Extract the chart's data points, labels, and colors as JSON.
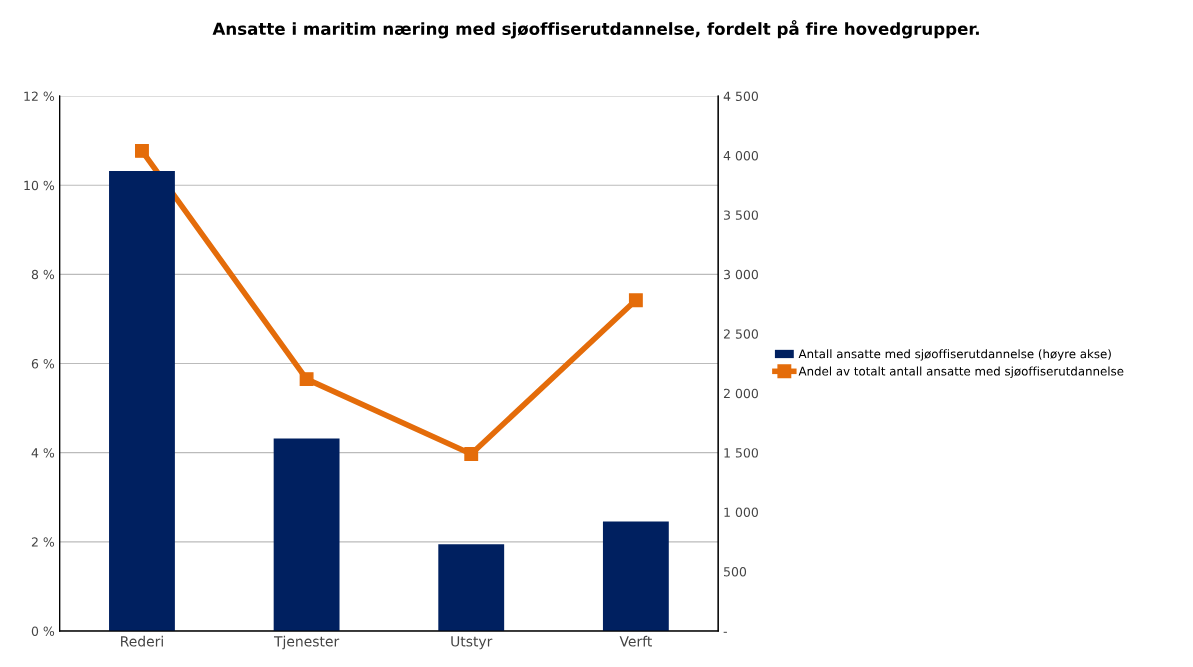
{
  "chart_data": {
    "type": "bar",
    "title": "Ansatte i maritim næring med sjøoffiserutdannelse, fordelt på fire hovedgrupper.",
    "categories": [
      "Rederi",
      "Tjenester",
      "Utstyr",
      "Verft"
    ],
    "series": [
      {
        "name": "Antall ansatte med sjøoffiserutdannelse (høyre akse)",
        "axis": "y2",
        "color": "#002060",
        "values": [
          3870,
          1620,
          730,
          920
        ]
      },
      {
        "name": "Andel av totalt antall ansatte med sjøoffiserutdannelse",
        "type": "line",
        "axis": "y",
        "color": "#e46c0a",
        "marker": "square",
        "values": [
          10.77,
          5.65,
          3.97,
          7.42
        ]
      }
    ],
    "ylim": [
      0,
      12
    ],
    "yticks": [
      {
        "value": 0,
        "label": "0 %"
      },
      {
        "value": 2,
        "label": "2 %"
      },
      {
        "value": 4,
        "label": "4 %"
      },
      {
        "value": 6,
        "label": "6 %"
      },
      {
        "value": 8,
        "label": "8 %"
      },
      {
        "value": 10,
        "label": "10 %"
      },
      {
        "value": 12,
        "label": "12 %"
      }
    ],
    "y2lim": [
      0,
      4500
    ],
    "y2ticks": [
      {
        "value": 0,
        "label": "-"
      },
      500,
      {
        "value": 1000,
        "label": "1 000"
      },
      {
        "value": 1500,
        "label": "1 500"
      },
      {
        "value": 2000,
        "label": "2 000"
      },
      {
        "value": 2500,
        "label": "2 500"
      },
      {
        "value": 3000,
        "label": "3 000"
      },
      {
        "value": 3500,
        "label": "3 500"
      },
      {
        "value": 4000,
        "label": "4 000"
      },
      {
        "value": 4500,
        "label": "4 500"
      }
    ],
    "grid": "y",
    "legend": "right"
  }
}
